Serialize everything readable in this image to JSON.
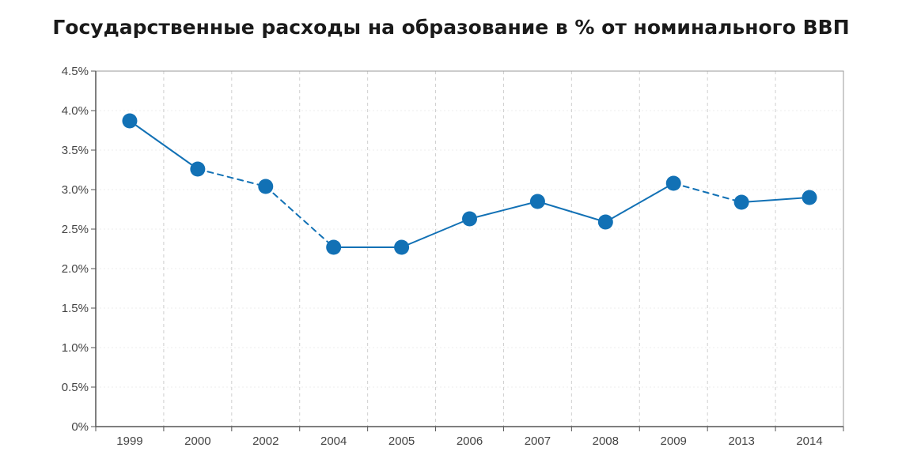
{
  "chart_data": {
    "type": "line",
    "title": "Государственные расходы на образование в % от номинального ВВП",
    "categories": [
      "1999",
      "2000",
      "2002",
      "2004",
      "2005",
      "2006",
      "2007",
      "2008",
      "2009",
      "2013",
      "2014"
    ],
    "values": [
      3.87,
      3.26,
      3.04,
      2.27,
      2.27,
      2.63,
      2.85,
      2.59,
      3.08,
      2.84,
      2.9
    ],
    "dashed_after_index": [
      1,
      2,
      8
    ],
    "xlabel": "",
    "ylabel": "",
    "ylim": [
      0,
      4.5
    ],
    "yticks": [
      0,
      0.5,
      1.0,
      1.5,
      2.0,
      2.5,
      3.0,
      3.5,
      4.0,
      4.5
    ],
    "ytick_labels": [
      "0%",
      "0.5%",
      "1.0%",
      "1.5%",
      "2.0%",
      "2.5%",
      "3.0%",
      "3.5%",
      "4.0%",
      "4.5%"
    ],
    "grid": true,
    "legend": "none",
    "colors": {
      "series": "#1271b5",
      "grid": "#cfcfcf",
      "axis": "#555555"
    }
  }
}
